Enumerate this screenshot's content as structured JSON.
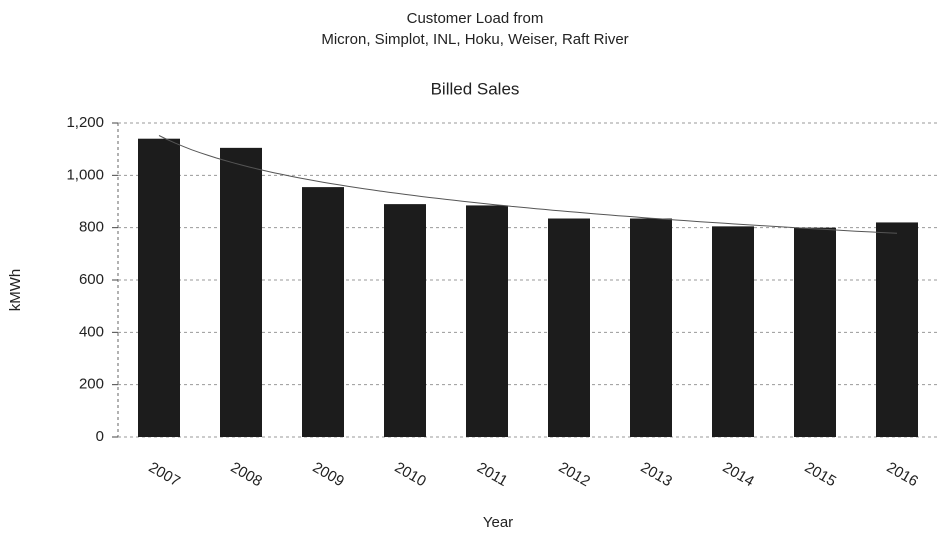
{
  "chart_data": {
    "type": "bar",
    "title": "Customer Load from",
    "subtitle": "Micron, Simplot, INL, Hoku, Weiser, Raft River",
    "chart_title": "Billed Sales",
    "x_label": "Year",
    "y_label": "kMWh",
    "categories": [
      "2007",
      "2008",
      "2009",
      "2010",
      "2011",
      "2012",
      "2013",
      "2014",
      "2015",
      "2016"
    ],
    "values": [
      1140,
      1105,
      955,
      890,
      885,
      835,
      835,
      805,
      800,
      820
    ],
    "color": "#1c1c1c",
    "ylim": [
      0,
      1200
    ],
    "yticks": [
      0,
      200,
      400,
      600,
      800,
      {
        "value": 1000,
        "label": "1,000"
      },
      {
        "value": 1200,
        "label": "1,200"
      }
    ],
    "grid": true,
    "trendline": true
  }
}
